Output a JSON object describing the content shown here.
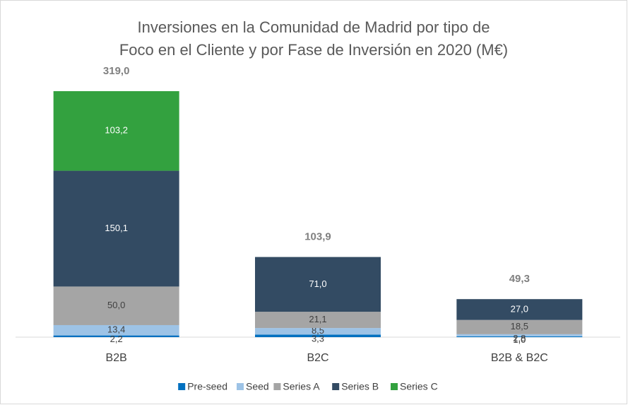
{
  "chart_data": {
    "type": "stacked_bar",
    "title": [
      "Inversiones en la Comunidad de Madrid por tipo de",
      "Foco en el Cliente y por Fase de Inversión en 2020 (M€)"
    ],
    "categories": [
      "B2B",
      "B2C",
      "B2B & B2C"
    ],
    "series": [
      {
        "name": "Pre-seed",
        "color": "#0070c0",
        "values": [
          2.2,
          3.3,
          1.0
        ],
        "value_labels": [
          "2,2",
          "3,3",
          "1,0"
        ]
      },
      {
        "name": "Seed",
        "color": "#9dc3e6",
        "values": [
          13.4,
          8.5,
          2.8
        ],
        "value_labels": [
          "13,4",
          "8,5",
          "2,8"
        ]
      },
      {
        "name": "Series A",
        "color": "#a5a5a5",
        "values": [
          50.0,
          21.1,
          18.5
        ],
        "value_labels": [
          "50,0",
          "21,1",
          "18,5"
        ]
      },
      {
        "name": "Series B",
        "color": "#334b63",
        "values": [
          150.1,
          71.0,
          27.0
        ],
        "value_labels": [
          "150,1",
          "71,0",
          "27,0"
        ]
      },
      {
        "name": "Series C",
        "color": "#33a13f",
        "values": [
          103.2,
          null,
          null
        ],
        "value_labels": [
          "103,2",
          null,
          null
        ]
      }
    ],
    "totals": [
      319.0,
      103.9,
      49.3
    ],
    "total_labels": [
      "319,0",
      "103,9",
      "49,3"
    ],
    "ylim": [
      0,
      350
    ],
    "legend": "bottom"
  }
}
